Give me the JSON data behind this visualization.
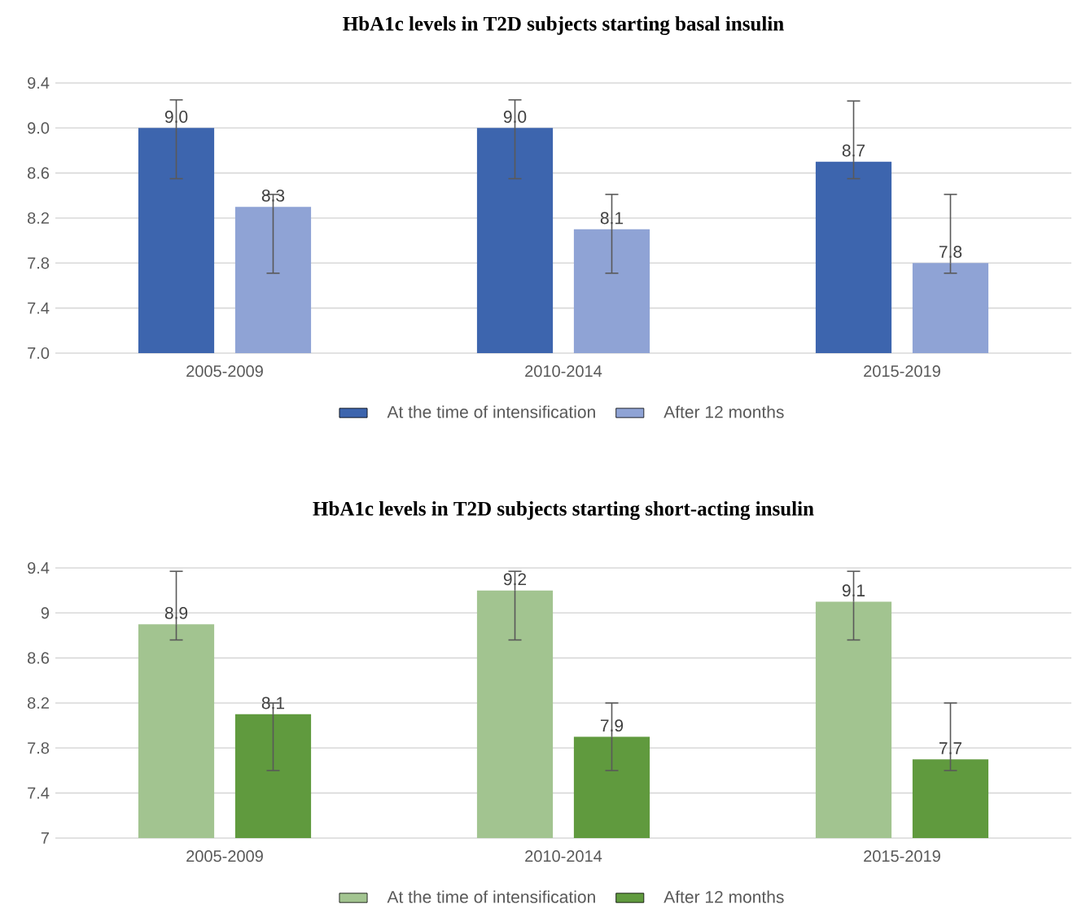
{
  "chart_data": [
    {
      "type": "bar",
      "title": "HbA1c levels in T2D subjects starting basal insulin",
      "categories": [
        "2005-2009",
        "2010-2014",
        "2015-2019"
      ],
      "series": [
        {
          "name": "At the time of intensification",
          "color": "#3d65ae",
          "values": [
            9.0,
            9.0,
            8.7
          ],
          "value_labels": [
            "9.0",
            "9.0",
            "8.7"
          ],
          "errors": [
            [
              8.55,
              9.25
            ],
            [
              8.55,
              9.25
            ],
            [
              8.55,
              9.24
            ]
          ]
        },
        {
          "name": "After 12 months",
          "color": "#8fa3d5",
          "values": [
            8.3,
            8.1,
            7.8
          ],
          "value_labels": [
            "8.3",
            "8.1",
            "7.8"
          ],
          "errors": [
            [
              7.71,
              8.41
            ],
            [
              7.71,
              8.41
            ],
            [
              7.71,
              8.41
            ]
          ]
        }
      ],
      "ylim": [
        7.0,
        9.4
      ],
      "yticks": [
        {
          "value": 7.0,
          "label": "7.0"
        },
        7.4,
        7.8,
        8.2,
        8.6,
        {
          "value": 9.0,
          "label": "9.0"
        },
        9.4
      ],
      "grid": "y",
      "legend": "bottom"
    },
    {
      "type": "bar",
      "title": "HbA1c levels in T2D subjects starting short-acting insulin",
      "categories": [
        "2005-2009",
        "2010-2014",
        "2015-2019"
      ],
      "series": [
        {
          "name": "At the time of intensification",
          "color": "#a2c490",
          "values": [
            8.9,
            9.2,
            9.1
          ],
          "value_labels": [
            "8.9",
            "9.2",
            "9.1"
          ],
          "errors": [
            [
              8.76,
              9.37
            ],
            [
              8.76,
              9.37
            ],
            [
              8.76,
              9.37
            ]
          ]
        },
        {
          "name": "After 12 months",
          "color": "#609a3e",
          "values": [
            8.1,
            7.9,
            7.7
          ],
          "value_labels": [
            "8.1",
            "7.9",
            "7.7"
          ],
          "errors": [
            [
              7.6,
              8.2
            ],
            [
              7.6,
              8.2
            ],
            [
              7.6,
              8.2
            ]
          ]
        }
      ],
      "ylim": [
        7,
        9.4
      ],
      "yticks": [
        7,
        7.4,
        7.8,
        8.2,
        8.6,
        9,
        9.4
      ],
      "grid": "y",
      "legend": "bottom"
    }
  ]
}
